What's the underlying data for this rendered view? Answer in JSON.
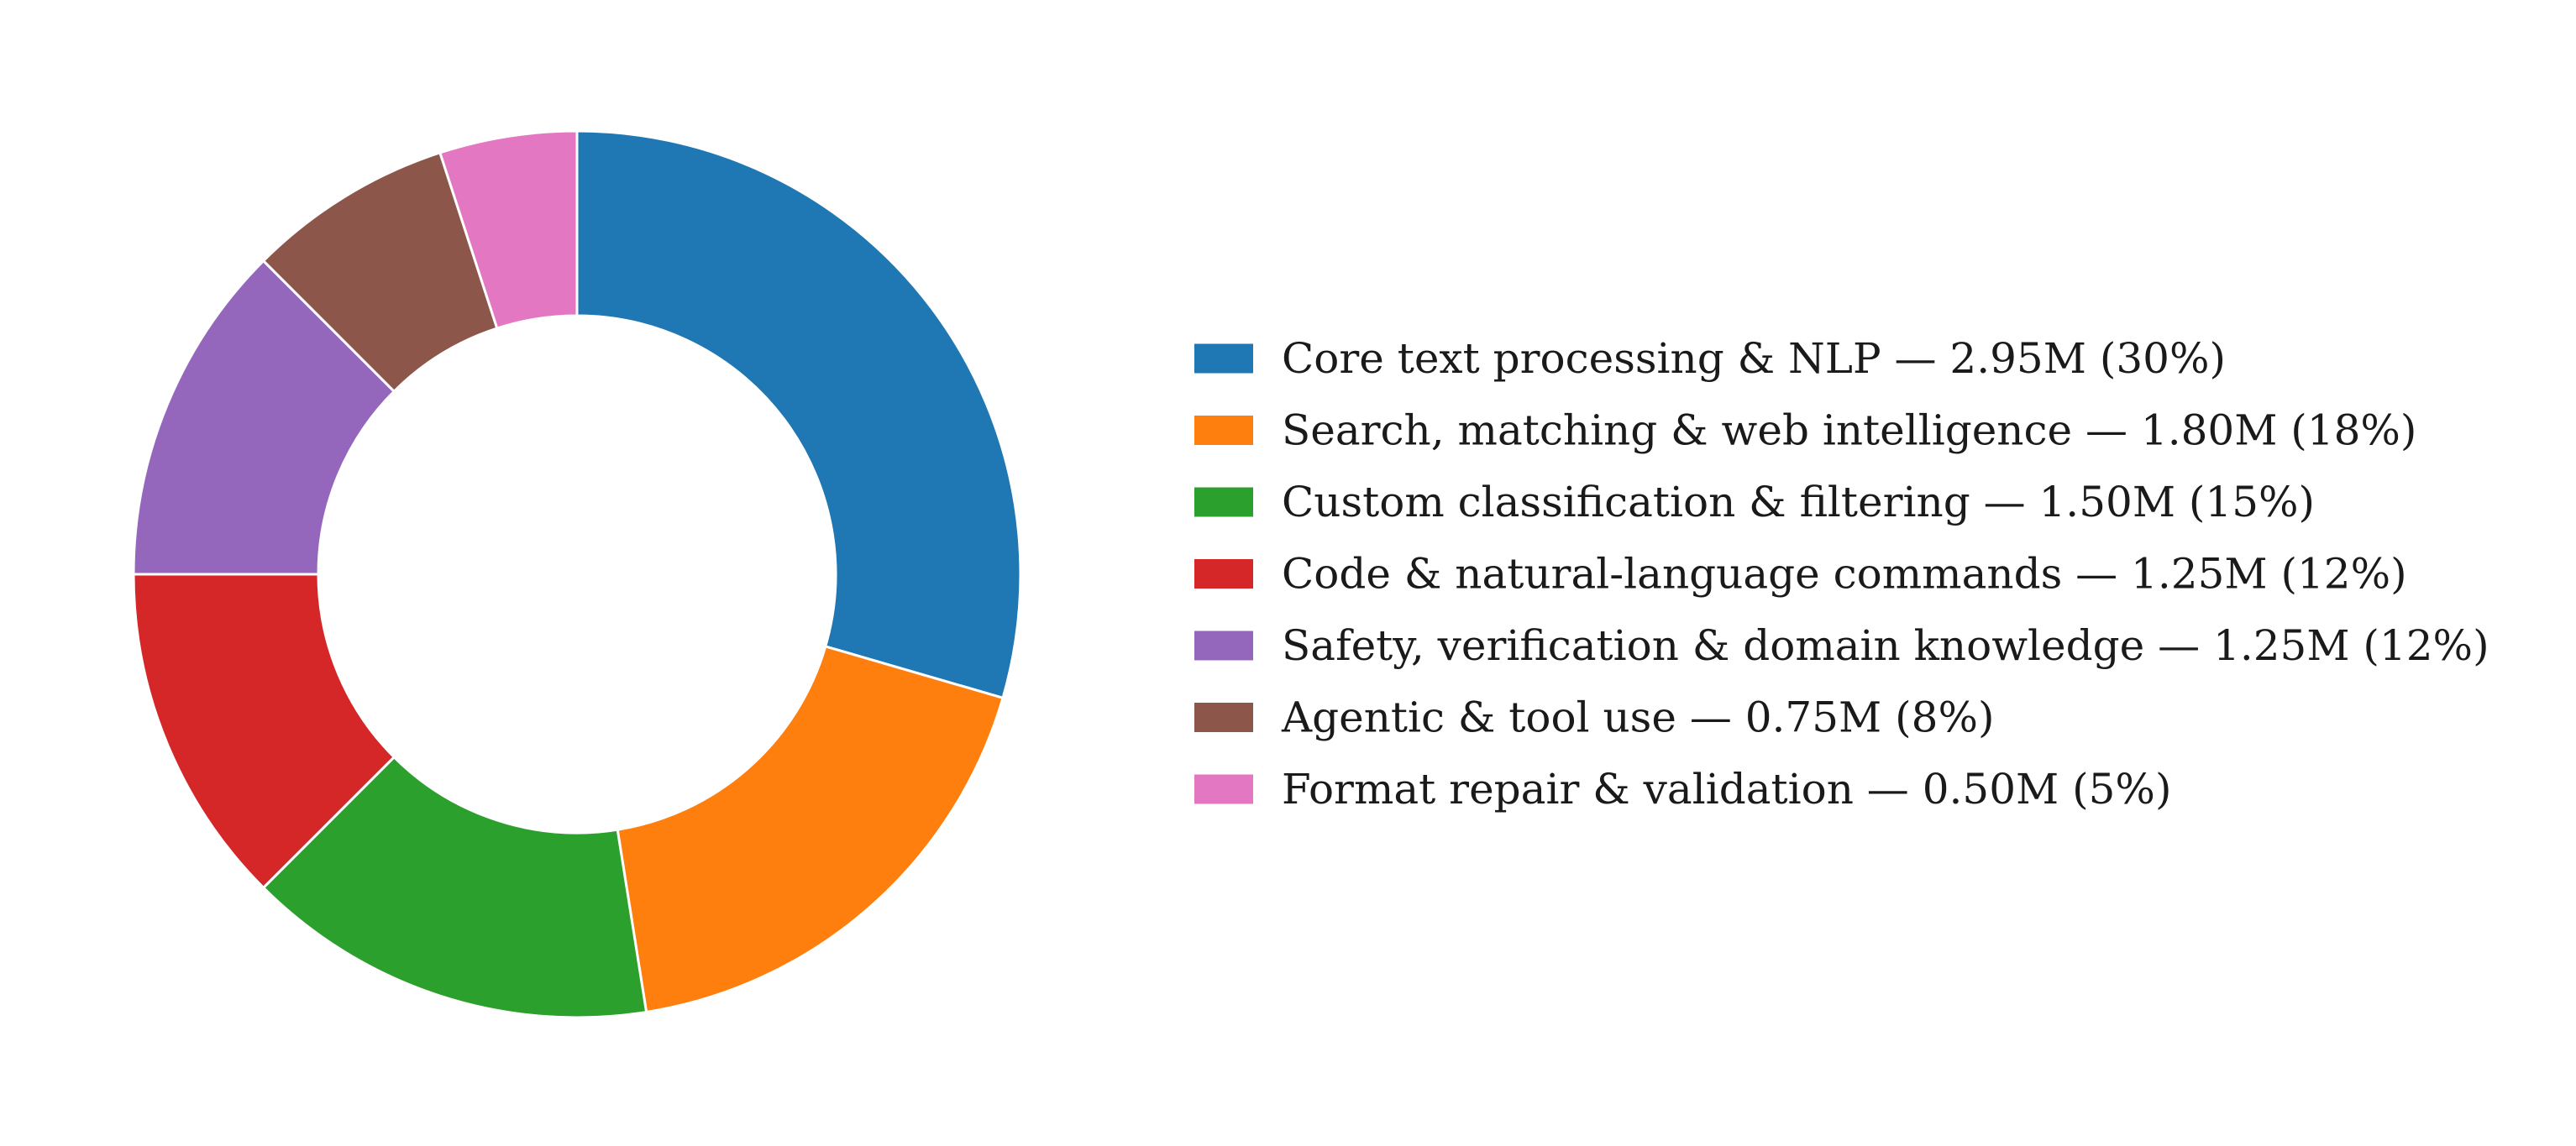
{
  "chart_data": {
    "type": "pie",
    "donut": true,
    "start": "12 o'clock",
    "direction": "clockwise",
    "legend_placement": "right",
    "units": "M",
    "categories": [
      "Core text processing & NLP",
      "Search, matching & web intelligence",
      "Custom classification & filtering",
      "Code & natural-language commands",
      "Safety, verification & domain knowledge",
      "Agentic & tool use",
      "Format repair & validation"
    ],
    "values": [
      2.95,
      1.8,
      1.5,
      1.25,
      1.25,
      0.75,
      0.5
    ],
    "percent_labels": [
      "30%",
      "18%",
      "15%",
      "12%",
      "12%",
      "8%",
      "5%"
    ],
    "colors": [
      "#1f77b4",
      "#ff7f0e",
      "#2ca02c",
      "#d62728",
      "#9467bd",
      "#8c564b",
      "#e377c2"
    ],
    "legend_entries": [
      "Core text processing & NLP  —  2.95M  (30%)",
      "Search, matching & web intelligence  —  1.80M  (18%)",
      "Custom classification & filtering  —  1.50M  (15%)",
      "Code & natural-language commands  —  1.25M  (12%)",
      "Safety, verification & domain knowledge  —  1.25M  (12%)",
      "Agentic & tool use  —  0.75M  (8%)",
      "Format repair & validation  —  0.50M  (5%)"
    ]
  }
}
